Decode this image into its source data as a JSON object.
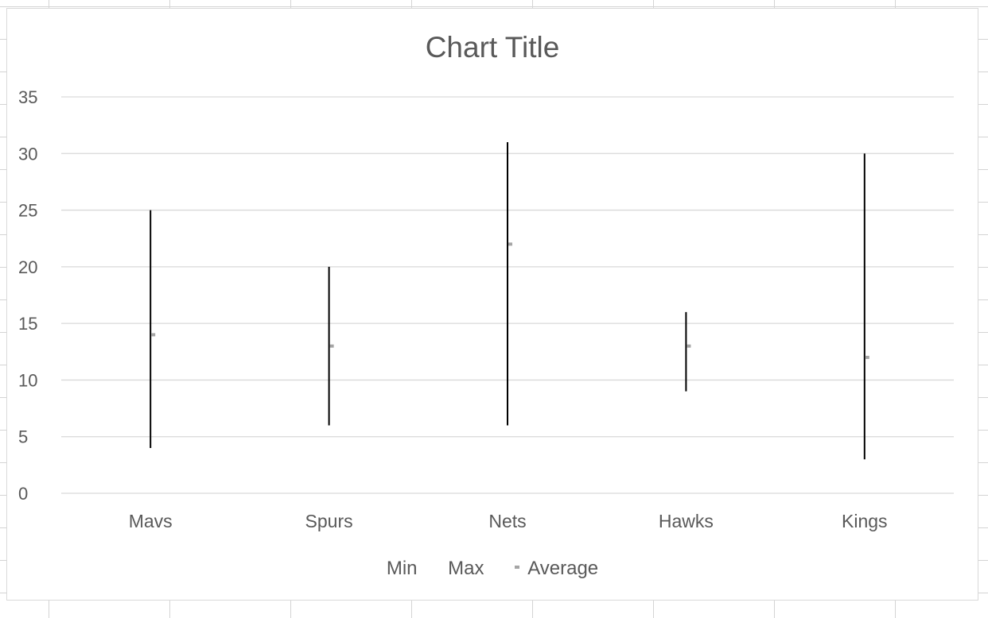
{
  "chart_data": {
    "type": "stock-hlc",
    "title": "Chart Title",
    "categories": [
      "Mavs",
      "Spurs",
      "Nets",
      "Hawks",
      "Kings"
    ],
    "series": [
      {
        "name": "Min",
        "values": [
          4,
          6,
          6,
          9,
          3
        ]
      },
      {
        "name": "Max",
        "values": [
          25,
          20,
          31,
          16,
          30
        ]
      },
      {
        "name": "Average",
        "values": [
          14,
          13,
          22,
          13,
          12
        ]
      }
    ],
    "ylim": [
      0,
      35
    ],
    "yticks": [
      0,
      5,
      10,
      15,
      20,
      25,
      30,
      35
    ],
    "grid": true,
    "legend_position": "bottom",
    "colors": {
      "range_line": "#000000",
      "average_marker": "#a5a5a5",
      "gridline": "#d9d9d9",
      "text": "#595959"
    }
  }
}
